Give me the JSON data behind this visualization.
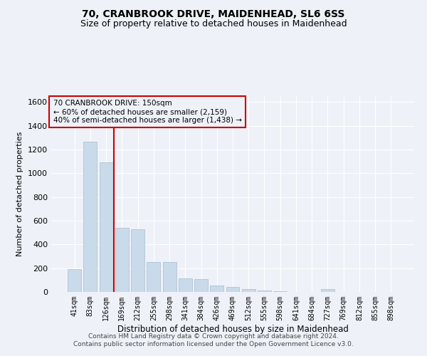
{
  "title": "70, CRANBROOK DRIVE, MAIDENHEAD, SL6 6SS",
  "subtitle": "Size of property relative to detached houses in Maidenhead",
  "xlabel": "Distribution of detached houses by size in Maidenhead",
  "ylabel": "Number of detached properties",
  "footer_line1": "Contains HM Land Registry data © Crown copyright and database right 2024.",
  "footer_line2": "Contains public sector information licensed under the Open Government Licence v3.0.",
  "annotation_line1": "70 CRANBROOK DRIVE: 150sqm",
  "annotation_line2": "← 60% of detached houses are smaller (2,159)",
  "annotation_line3": "40% of semi-detached houses are larger (1,438) →",
  "bar_color": "#c9daea",
  "bar_edge_color": "#aabbcc",
  "vline_color": "#cc0000",
  "categories": [
    "41sqm",
    "83sqm",
    "126sqm",
    "169sqm",
    "212sqm",
    "255sqm",
    "298sqm",
    "341sqm",
    "384sqm",
    "426sqm",
    "469sqm",
    "512sqm",
    "555sqm",
    "598sqm",
    "641sqm",
    "684sqm",
    "727sqm",
    "769sqm",
    "812sqm",
    "855sqm",
    "898sqm"
  ],
  "values": [
    190,
    1265,
    1090,
    540,
    530,
    255,
    250,
    115,
    110,
    55,
    40,
    25,
    15,
    5,
    3,
    2,
    25,
    1,
    1,
    1,
    1
  ],
  "ylim": [
    0,
    1650
  ],
  "yticks": [
    0,
    200,
    400,
    600,
    800,
    1000,
    1200,
    1400,
    1600
  ],
  "background_color": "#eef2f8",
  "grid_color": "#ffffff",
  "title_fontsize": 10,
  "subtitle_fontsize": 9
}
